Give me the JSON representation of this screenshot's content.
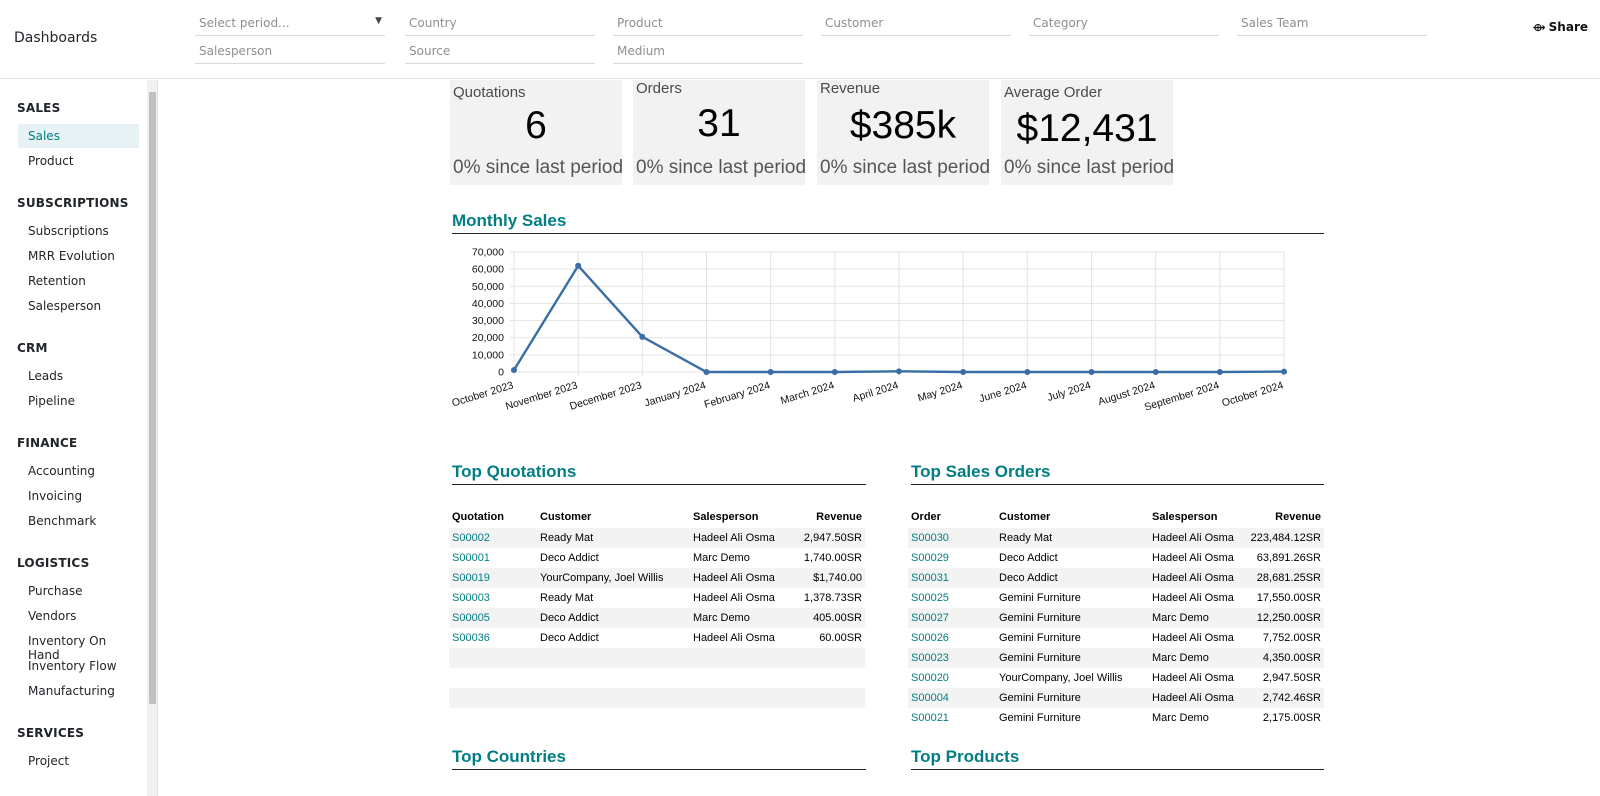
{
  "app": {
    "title": "Dashboards",
    "share_label": "Share"
  },
  "filters": {
    "period": "Select period...",
    "country": "Country",
    "product": "Product",
    "customer": "Customer",
    "category": "Category",
    "sales_team": "Sales Team",
    "salesperson": "Salesperson",
    "source": "Source",
    "medium": "Medium"
  },
  "sidebar": {
    "sections": [
      {
        "title": "SALES",
        "items": [
          "Sales",
          "Product"
        ]
      },
      {
        "title": "SUBSCRIPTIONS",
        "items": [
          "Subscriptions",
          "MRR Evolution",
          "Retention",
          "Salesperson"
        ]
      },
      {
        "title": "CRM",
        "items": [
          "Leads",
          "Pipeline"
        ]
      },
      {
        "title": "FINANCE",
        "items": [
          "Accounting",
          "Invoicing",
          "Benchmark"
        ]
      },
      {
        "title": "LOGISTICS",
        "items": [
          "Purchase",
          "Vendors",
          "Inventory On Hand",
          "Inventory Flow",
          "Manufacturing"
        ]
      },
      {
        "title": "SERVICES",
        "items": [
          "Project"
        ]
      }
    ],
    "active_item": "Sales"
  },
  "kpis": [
    {
      "label": "Quotations",
      "value": "6",
      "change": "0% since last period"
    },
    {
      "label": "Orders",
      "value": "31",
      "change": "0% since last period"
    },
    {
      "label": "Revenue",
      "value": "$385k",
      "change": "0% since last period"
    },
    {
      "label": "Average Order",
      "value": "$12,431",
      "change": "0% since last period"
    }
  ],
  "sections": {
    "monthly_sales": "Monthly Sales",
    "top_quotations": "Top Quotations",
    "top_sales_orders": "Top Sales Orders",
    "top_countries": "Top Countries",
    "top_products": "Top Products"
  },
  "chart_data": {
    "type": "line",
    "title": "Monthly Sales",
    "categories": [
      "October 2023",
      "November 2023",
      "December 2023",
      "January 2024",
      "February 2024",
      "March 2024",
      "April 2024",
      "May 2024",
      "June 2024",
      "July 2024",
      "August 2024",
      "September 2024",
      "October 2024"
    ],
    "values": [
      1200,
      62000,
      20500,
      0,
      0,
      0,
      400,
      0,
      0,
      0,
      0,
      0,
      250
    ],
    "yticks": [
      "0",
      "10,000",
      "20,000",
      "30,000",
      "40,000",
      "50,000",
      "60,000",
      "70,000"
    ],
    "ylim": [
      0,
      70000
    ],
    "grid": true,
    "series_color": "#3a6ea5"
  },
  "top_quotations": {
    "headers": [
      "Quotation",
      "Customer",
      "Salesperson",
      "Revenue"
    ],
    "rows": [
      [
        "S00002",
        "Ready Mat",
        "Hadeel Ali Osma",
        "2,947.50SR"
      ],
      [
        "S00001",
        "Deco Addict",
        "Marc Demo",
        "1,740.00SR"
      ],
      [
        "S00019",
        "YourCompany, Joel Willis",
        "Hadeel Ali Osma",
        "$1,740.00"
      ],
      [
        "S00003",
        "Ready Mat",
        "Hadeel Ali Osma",
        "1,378.73SR"
      ],
      [
        "S00005",
        "Deco Addict",
        "Marc Demo",
        "405.00SR"
      ],
      [
        "S00036",
        "Deco Addict",
        "Hadeel Ali Osma",
        "60.00SR"
      ],
      [
        "",
        "",
        "",
        ""
      ],
      [
        "",
        "",
        "",
        ""
      ],
      [
        "",
        "",
        "",
        ""
      ],
      [
        "",
        "",
        "",
        ""
      ]
    ]
  },
  "top_sales_orders": {
    "headers": [
      "Order",
      "Customer",
      "Salesperson",
      "Revenue"
    ],
    "rows": [
      [
        "S00030",
        "Ready Mat",
        "Hadeel Ali Osma",
        "223,484.12SR"
      ],
      [
        "S00029",
        "Deco Addict",
        "Hadeel Ali Osma",
        "63,891.26SR"
      ],
      [
        "S00031",
        "Deco Addict",
        "Hadeel Ali Osma",
        "28,681.25SR"
      ],
      [
        "S00025",
        "Gemini Furniture",
        "Hadeel Ali Osma",
        "17,550.00SR"
      ],
      [
        "S00027",
        "Gemini Furniture",
        "Marc Demo",
        "12,250.00SR"
      ],
      [
        "S00026",
        "Gemini Furniture",
        "Hadeel Ali Osma",
        "7,752.00SR"
      ],
      [
        "S00023",
        "Gemini Furniture",
        "Marc Demo",
        "4,350.00SR"
      ],
      [
        "S00020",
        "YourCompany, Joel Willis",
        "Hadeel Ali Osma",
        "2,947.50SR"
      ],
      [
        "S00004",
        "Gemini Furniture",
        "Hadeel Ali Osma",
        "2,742.46SR"
      ],
      [
        "S00021",
        "Gemini Furniture",
        "Marc Demo",
        "2,175.00SR"
      ]
    ]
  }
}
